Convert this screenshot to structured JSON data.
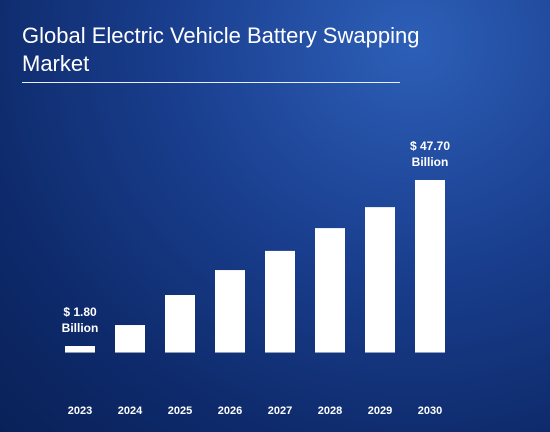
{
  "chart_data": {
    "type": "bar",
    "title": "Global Electric Vehicle Battery Swapping Market",
    "categories": [
      "2023",
      "2024",
      "2025",
      "2026",
      "2027",
      "2028",
      "2029",
      "2030"
    ],
    "values": [
      1.8,
      7.6,
      15.9,
      22.8,
      28.1,
      34.4,
      40.2,
      47.7
    ],
    "value_labels": [
      "$ 1.80 Billion",
      null,
      null,
      null,
      null,
      null,
      null,
      "$ 47.70 Billion"
    ],
    "color": "#ffffff",
    "ylim": [
      -13.4,
      47.7
    ]
  }
}
